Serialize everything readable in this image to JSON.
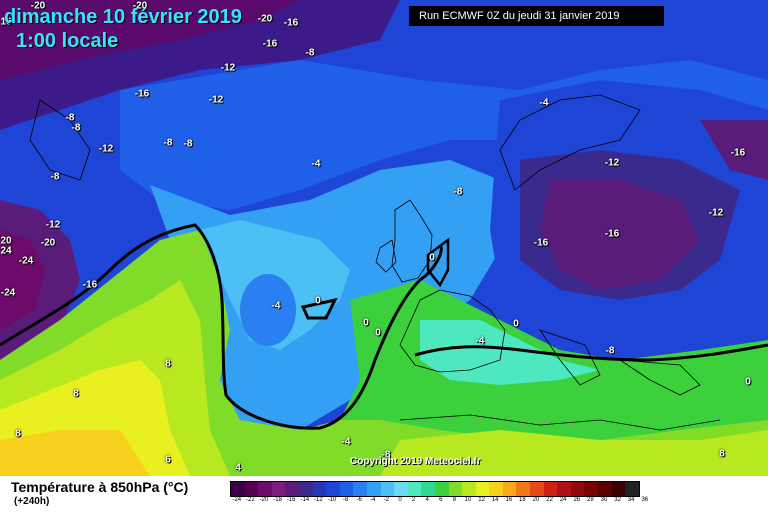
{
  "title": {
    "date": "dimanche 10 février 2019",
    "time": "1:00 locale"
  },
  "run_info": "Run ECMWF 0Z du jeudi 31 janvier 2019",
  "copyright": "Copyright 2019 Meteociel.fr",
  "legend": {
    "title": "Température à 850hPa (°C)",
    "subtitle": "(+240h)",
    "ticks": [
      "-24",
      "-22",
      "-20",
      "-18",
      "-16",
      "-14",
      "-12",
      "-10",
      "-8",
      "-6",
      "-4",
      "-2",
      "0",
      "2",
      "4",
      "6",
      "8",
      "10",
      "12",
      "14",
      "16",
      "18",
      "20",
      "22",
      "24",
      "26",
      "28",
      "30",
      "32",
      "34",
      "36"
    ],
    "colors": [
      "#3d0045",
      "#55004f",
      "#6d0a6a",
      "#7f1a7f",
      "#5a1c7a",
      "#3a2a8e",
      "#2638b8",
      "#1f45d6",
      "#2060e8",
      "#2a80f0",
      "#34a0f4",
      "#4cc0f4",
      "#70d8f0",
      "#4ee8c0",
      "#30d890",
      "#3cd03c",
      "#80dc28",
      "#b8e820",
      "#e8f020",
      "#f8d020",
      "#f8a818",
      "#f07818",
      "#e84818",
      "#d02018",
      "#b01018",
      "#900810",
      "#780000",
      "#5a0000",
      "#3a0000",
      "#222222"
    ]
  },
  "isotherm_labels": [
    {
      "t": "-20"
    },
    {
      "t": "-20"
    },
    {
      "t": "-16"
    },
    {
      "t": "-20"
    },
    {
      "t": "16"
    },
    {
      "t": "-16"
    },
    {
      "t": "-8"
    },
    {
      "t": "-12"
    },
    {
      "t": "-12"
    },
    {
      "t": "-16"
    },
    {
      "t": "-8"
    },
    {
      "t": "-8"
    },
    {
      "t": "-12"
    },
    {
      "t": "-8"
    },
    {
      "t": "-8"
    },
    {
      "t": "-8"
    },
    {
      "t": "-4"
    },
    {
      "t": "-4"
    },
    {
      "t": "-8"
    },
    {
      "t": "-12"
    },
    {
      "t": "-16"
    },
    {
      "t": "-12"
    },
    {
      "t": "-16"
    },
    {
      "t": "-16"
    },
    {
      "t": "-12"
    },
    {
      "t": "-20"
    },
    {
      "t": "20"
    },
    {
      "t": "24"
    },
    {
      "t": "-24"
    },
    {
      "t": "-24"
    },
    {
      "t": "-16"
    },
    {
      "t": "-4"
    },
    {
      "t": "0"
    },
    {
      "t": "0"
    },
    {
      "t": "0"
    },
    {
      "t": "0"
    },
    {
      "t": "0"
    },
    {
      "t": "-4"
    },
    {
      "t": "-8"
    },
    {
      "t": "0"
    },
    {
      "t": "8"
    },
    {
      "t": "8"
    },
    {
      "t": "8"
    },
    {
      "t": "-4"
    },
    {
      "t": "-8"
    },
    {
      "t": "8"
    },
    {
      "t": "6"
    },
    {
      "t": "4"
    }
  ]
}
